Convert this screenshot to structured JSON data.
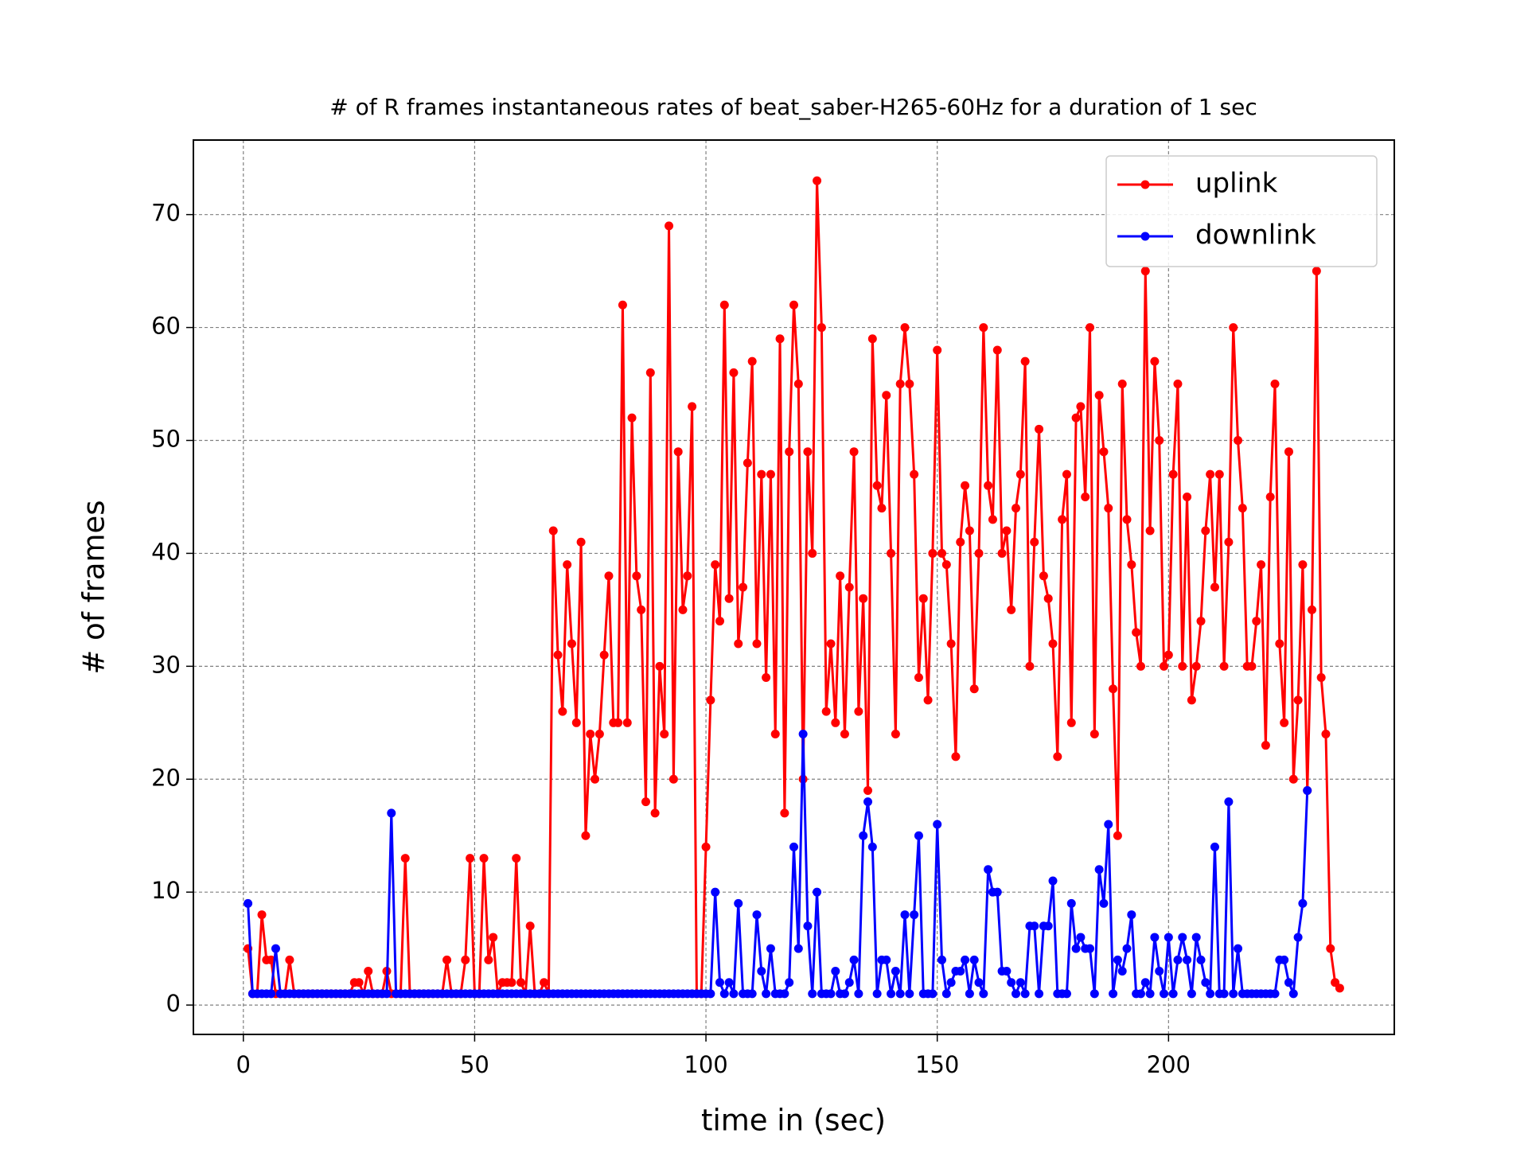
{
  "chart_data": {
    "type": "line",
    "title": "# of R frames instantaneous rates of beat_saber-H265-60Hz for a duration of 1 sec",
    "xlabel": "time in (sec)",
    "ylabel": "# of frames",
    "x": [
      1,
      2,
      3,
      4,
      5,
      6,
      7,
      8,
      9,
      10,
      11,
      12,
      13,
      14,
      15,
      16,
      17,
      18,
      19,
      20,
      21,
      22,
      23,
      24,
      25,
      26,
      27,
      28,
      29,
      30,
      31,
      32,
      33,
      34,
      35,
      36,
      37,
      38,
      39,
      40,
      41,
      42,
      43,
      44,
      45,
      46,
      47,
      48,
      49,
      50,
      51,
      52,
      53,
      54,
      55,
      56,
      57,
      58,
      59,
      60,
      61,
      62,
      63,
      64,
      65,
      66,
      67,
      68,
      69,
      70,
      71,
      72,
      73,
      74,
      75,
      76,
      77,
      78,
      79,
      80,
      81,
      82,
      83,
      84,
      85,
      86,
      87,
      88,
      89,
      90,
      91,
      92,
      93,
      94,
      95,
      96,
      97,
      98,
      99,
      100,
      101,
      102,
      103,
      104,
      105,
      106,
      107,
      108,
      109,
      110,
      111,
      112,
      113,
      114,
      115,
      116,
      117,
      118,
      119,
      120,
      121,
      122,
      123,
      124,
      125,
      126,
      127,
      128,
      129,
      130,
      131,
      132,
      133,
      134,
      135,
      136,
      137,
      138,
      139,
      140,
      141,
      142,
      143,
      144,
      145,
      146,
      147,
      148,
      149,
      150,
      151,
      152,
      153,
      154,
      155,
      156,
      157,
      158,
      159,
      160,
      161,
      162,
      163,
      164,
      165,
      166,
      167,
      168,
      169,
      170,
      171,
      172,
      173,
      174,
      175,
      176,
      177,
      178,
      179,
      180,
      181,
      182,
      183,
      184,
      185,
      186,
      187,
      188,
      189,
      190,
      191,
      192,
      193,
      194,
      195,
      196,
      197,
      198,
      199,
      200,
      201,
      202,
      203,
      204,
      205,
      206,
      207,
      208,
      209,
      210,
      211,
      212,
      213,
      214,
      215,
      216,
      217,
      218,
      219,
      220,
      221,
      222,
      223,
      224,
      225,
      226,
      227,
      228,
      229,
      230,
      231,
      232,
      233,
      234,
      235,
      236,
      237
    ],
    "series": [
      {
        "name": "uplink",
        "color": "#ff0000",
        "values": [
          5,
          1,
          1,
          8,
          4,
          4,
          1,
          1,
          1,
          4,
          1,
          1,
          1,
          1,
          1,
          1,
          1,
          1,
          1,
          1,
          1,
          1,
          1,
          2,
          2,
          1,
          3,
          1,
          1,
          1,
          3,
          1,
          1,
          1,
          13,
          1,
          1,
          1,
          1,
          1,
          1,
          1,
          1,
          4,
          1,
          1,
          1,
          4,
          13,
          1,
          1,
          13,
          4,
          6,
          1,
          2,
          2,
          2,
          13,
          2,
          1,
          7,
          1,
          1,
          2,
          1,
          42,
          31,
          26,
          39,
          32,
          25,
          41,
          15,
          24,
          20,
          24,
          31,
          38,
          25,
          25,
          62,
          25,
          52,
          38,
          35,
          18,
          56,
          17,
          30,
          24,
          69,
          20,
          49,
          35,
          38,
          53,
          1,
          1,
          14,
          27,
          39,
          34,
          62,
          36,
          56,
          32,
          37,
          48,
          57,
          32,
          47,
          29,
          47,
          24,
          59,
          17,
          49,
          62,
          55,
          20,
          49,
          40,
          73,
          60,
          26,
          32,
          25,
          38,
          24,
          37,
          49,
          26,
          36,
          19,
          59,
          46,
          44,
          54,
          40,
          24,
          55,
          60,
          55,
          47,
          29,
          36,
          27,
          40,
          58,
          40,
          39,
          32,
          22,
          41,
          46,
          42,
          28,
          40,
          60,
          46,
          43,
          58,
          40,
          42,
          35,
          44,
          47,
          57,
          30,
          41,
          51,
          38,
          36,
          32,
          22,
          43,
          47,
          25,
          52,
          53,
          45,
          60,
          24,
          54,
          49,
          44,
          28,
          15,
          55,
          43,
          39,
          33,
          30,
          65,
          42,
          57,
          50,
          30,
          31,
          47,
          55,
          30,
          45,
          27,
          30,
          34,
          42,
          47,
          37,
          47,
          30,
          41,
          60,
          50,
          44,
          30,
          30,
          34,
          39,
          23,
          45,
          55,
          32,
          25,
          49,
          20,
          27,
          39,
          19,
          35,
          65,
          29,
          24,
          5,
          2,
          1.5
        ]
      },
      {
        "name": "downlink",
        "color": "#0000ff",
        "values": [
          9,
          1,
          1,
          1,
          1,
          1,
          5,
          1,
          1,
          1,
          1,
          1,
          1,
          1,
          1,
          1,
          1,
          1,
          1,
          1,
          1,
          1,
          1,
          1,
          1,
          1,
          1,
          1,
          1,
          1,
          1,
          17,
          1,
          1,
          1,
          1,
          1,
          1,
          1,
          1,
          1,
          1,
          1,
          1,
          1,
          1,
          1,
          1,
          1,
          1,
          1,
          1,
          1,
          1,
          1,
          1,
          1,
          1,
          1,
          1,
          1,
          1,
          1,
          1,
          1,
          1,
          1,
          1,
          1,
          1,
          1,
          1,
          1,
          1,
          1,
          1,
          1,
          1,
          1,
          1,
          1,
          1,
          1,
          1,
          1,
          1,
          1,
          1,
          1,
          1,
          1,
          1,
          1,
          1,
          1,
          1,
          1,
          1,
          1,
          1,
          1,
          10,
          2,
          1,
          2,
          1,
          9,
          1,
          1,
          1,
          8,
          3,
          1,
          5,
          1,
          1,
          1,
          2,
          14,
          5,
          24,
          7,
          1,
          10,
          1,
          1,
          1,
          3,
          1,
          1,
          2,
          4,
          1,
          15,
          18,
          14,
          1,
          4,
          4,
          1,
          3,
          1,
          8,
          1,
          8,
          15,
          1,
          1,
          1,
          16,
          4,
          1,
          2,
          3,
          3,
          4,
          1,
          4,
          2,
          1,
          12,
          10,
          10,
          3,
          3,
          2,
          1,
          2,
          1,
          7,
          7,
          1,
          7,
          7,
          11,
          1,
          1,
          1,
          9,
          5,
          6,
          5,
          5,
          1,
          12,
          9,
          16,
          1,
          4,
          3,
          5,
          8,
          1,
          1,
          2,
          1,
          6,
          3,
          1,
          6,
          1,
          4,
          6,
          4,
          1,
          6,
          4,
          2,
          1,
          14,
          1,
          1,
          18,
          1,
          5,
          1,
          1,
          1,
          1,
          1,
          1,
          1,
          1,
          4,
          4,
          2,
          1,
          6,
          9,
          19,
          null,
          null,
          null,
          null,
          null,
          null,
          null
        ]
      }
    ],
    "xlim": [
      -10.8,
      248.8
    ],
    "ylim": [
      -2.6,
      76.6
    ],
    "xticks": [
      0,
      50,
      100,
      150,
      200
    ],
    "yticks": [
      0,
      10,
      20,
      30,
      40,
      50,
      60,
      70
    ],
    "grid": true,
    "legend": "upper right"
  }
}
